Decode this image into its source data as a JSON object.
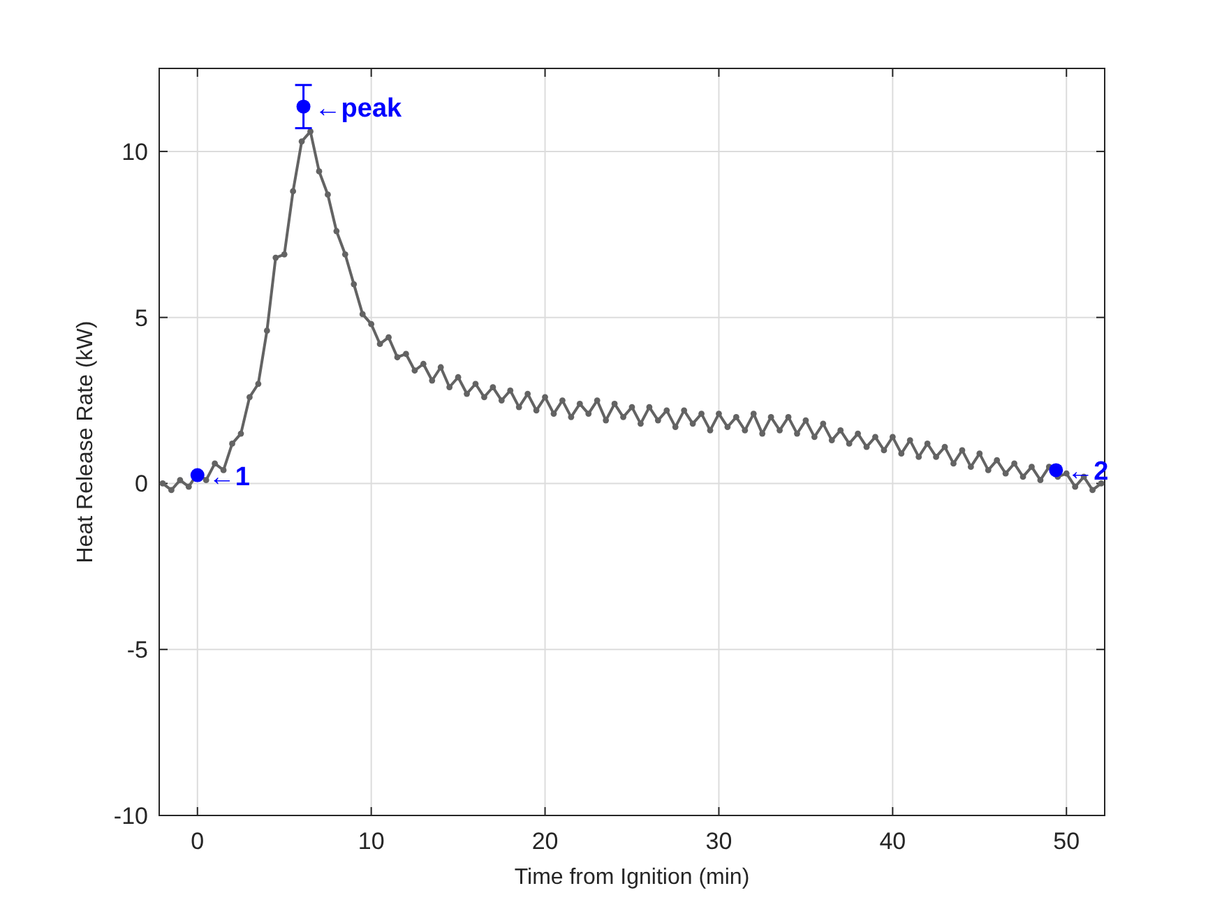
{
  "chart_data": {
    "type": "line",
    "xlabel": "Time from Ignition (min)",
    "ylabel": "Heat Release Rate (kW)",
    "xlim": [
      -2.2,
      52.2
    ],
    "ylim": [
      -10,
      12.5
    ],
    "xticks": [
      0,
      10,
      20,
      30,
      40,
      50
    ],
    "yticks": [
      -10,
      -5,
      0,
      5,
      10
    ],
    "grid": true,
    "annotations": [
      {
        "text": "←1",
        "x": 0,
        "y": 0.25
      },
      {
        "text": "←peak",
        "x": 6.1,
        "y": 11.35
      },
      {
        "text": "←2",
        "x": 49.4,
        "y": 0.4
      }
    ],
    "series": [
      {
        "color": "#636363",
        "marker": "circle",
        "line_style": "solid",
        "x": [
          -2,
          -1.5,
          -1,
          -0.5,
          0,
          0.5,
          1,
          1.5,
          2,
          2.5,
          3,
          3.5,
          4,
          4.5,
          5,
          5.5,
          6,
          6.5,
          7,
          7.5,
          8,
          8.5,
          9,
          9.5,
          10,
          10.5,
          11,
          11.5,
          12,
          12.5,
          13,
          13.5,
          14,
          14.5,
          15,
          15.5,
          16,
          16.5,
          17,
          17.5,
          18,
          18.5,
          19,
          19.5,
          20,
          20.5,
          21,
          21.5,
          22,
          22.5,
          23,
          23.5,
          24,
          24.5,
          25,
          25.5,
          26,
          26.5,
          27,
          27.5,
          28,
          28.5,
          29,
          29.5,
          30,
          30.5,
          31,
          31.5,
          32,
          32.5,
          33,
          33.5,
          34,
          34.5,
          35,
          35.5,
          36,
          36.5,
          37,
          37.5,
          38,
          38.5,
          39,
          39.5,
          40,
          40.5,
          41,
          41.5,
          42,
          42.5,
          43,
          43.5,
          44,
          44.5,
          45,
          45.5,
          46,
          46.5,
          47,
          47.5,
          48,
          48.5,
          49,
          49.5,
          50,
          50.5,
          51,
          51.5,
          52
        ],
        "values": [
          0,
          -0.2,
          0.1,
          -0.1,
          0.3,
          0.1,
          0.6,
          0.4,
          1.2,
          1.5,
          2.6,
          3,
          4.6,
          6.8,
          6.9,
          8.8,
          10.3,
          10.6,
          9.4,
          8.7,
          7.6,
          6.9,
          6,
          5.1,
          4.8,
          4.2,
          4.4,
          3.8,
          3.9,
          3.4,
          3.6,
          3.1,
          3.5,
          2.9,
          3.2,
          2.7,
          3,
          2.6,
          2.9,
          2.5,
          2.8,
          2.3,
          2.7,
          2.2,
          2.6,
          2.1,
          2.5,
          2,
          2.4,
          2.1,
          2.5,
          1.9,
          2.4,
          2,
          2.3,
          1.8,
          2.3,
          1.9,
          2.2,
          1.7,
          2.2,
          1.8,
          2.1,
          1.6,
          2.1,
          1.7,
          2,
          1.6,
          2.1,
          1.5,
          2,
          1.6,
          2,
          1.5,
          1.9,
          1.4,
          1.8,
          1.3,
          1.6,
          1.2,
          1.5,
          1.1,
          1.4,
          1,
          1.4,
          0.9,
          1.3,
          0.8,
          1.2,
          0.8,
          1.1,
          0.6,
          1,
          0.5,
          0.9,
          0.4,
          0.7,
          0.3,
          0.6,
          0.2,
          0.5,
          0.1,
          0.5,
          0.2,
          0.3,
          -0.1,
          0.2,
          -0.2,
          0
        ]
      },
      {
        "type": "scatter",
        "color": "#0000ff",
        "marker": "circle",
        "x": [
          0,
          6.1,
          49.4
        ],
        "values": [
          0.25,
          11.35,
          0.4
        ],
        "errors": [
          null,
          [
            10.7,
            12.0
          ],
          null
        ]
      }
    ]
  }
}
